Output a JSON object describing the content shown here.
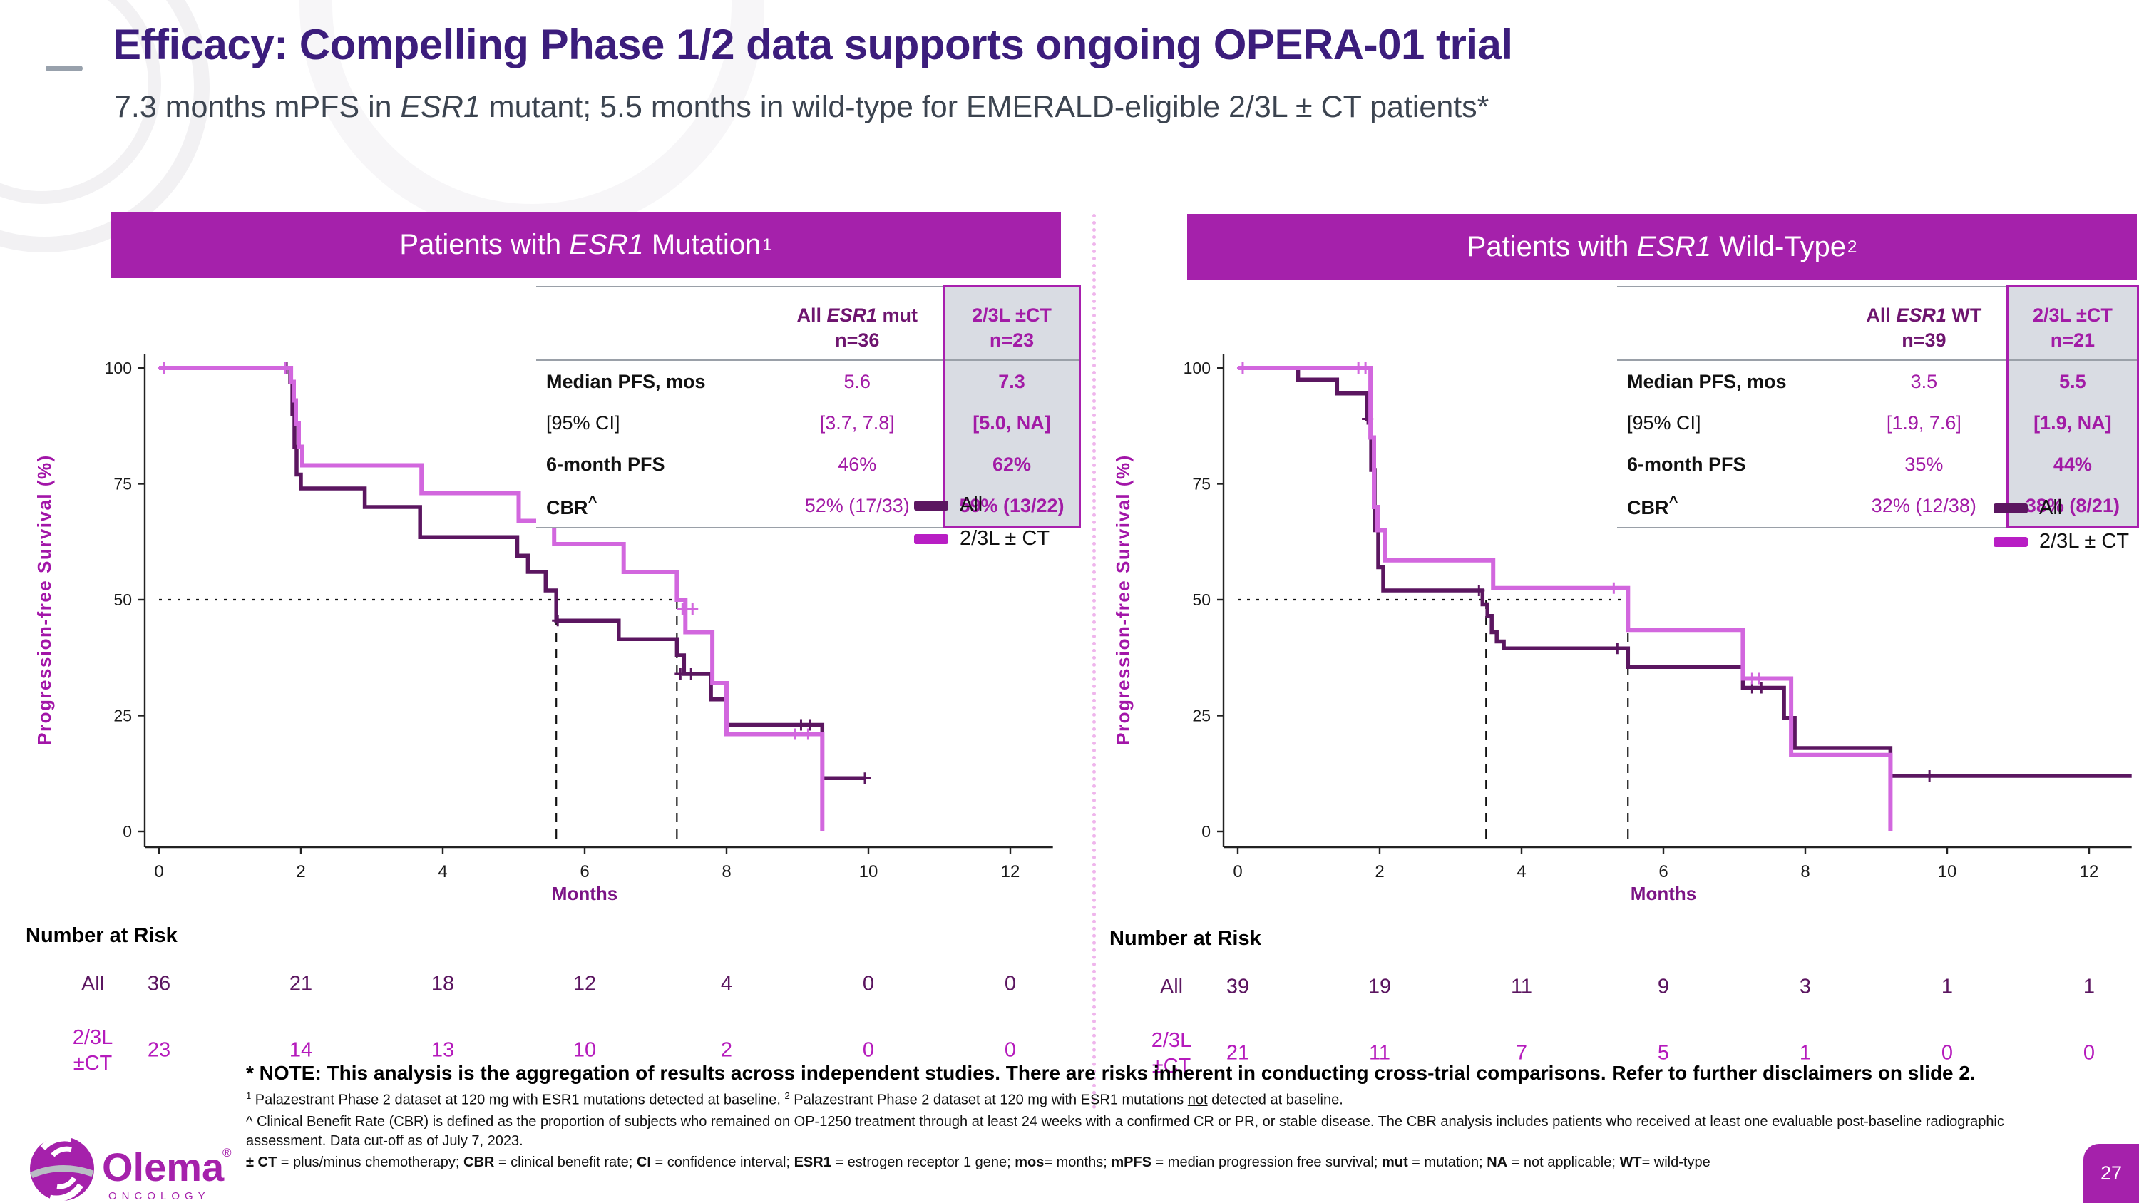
{
  "slide": {
    "title": "Efficacy: Compelling Phase 1/2 data supports ongoing OPERA-01 trial",
    "subtitle": {
      "pre": "7.3 months mPFS in ",
      "italic": "ESR1",
      "post": " mutant; 5.5 months in wild-type for EMERALD-eligible 2/3L ± CT patients*"
    },
    "page_number": "27",
    "brand": {
      "name": "Olema",
      "registered": "®",
      "subtext": "ONCOLOGY"
    }
  },
  "colors": {
    "accent_dark": "#5b1660",
    "accent_magenta": "#b51abc",
    "curve_light": "#d267de",
    "header_bg": "#a521ab",
    "title": "#3c1d7c",
    "highlight_bg": "#d9dce3",
    "highlight_border": "#a81fae"
  },
  "panels": [
    {
      "header": {
        "pre": "Patients with ",
        "italic": "ESR1",
        "post": " Mutation",
        "sup": "1"
      },
      "stats": {
        "col1_header": {
          "pre": "All ",
          "italic": "ESR1",
          "post": " mut"
        },
        "col1_n": "n=36",
        "col2_header": "2/3L ±CT",
        "col2_n": "n=23",
        "rows": [
          {
            "label": "Median PFS, mos",
            "v1": "5.6",
            "v2": "7.3"
          },
          {
            "label": "[95% CI]",
            "v1": "[3.7, 7.8]",
            "v2": "[5.0, NA]"
          },
          {
            "label": "6-month PFS",
            "v1": "46%",
            "v2": "62%"
          },
          {
            "label": "CBR",
            "label_sup": "^",
            "v1": "52% (17/33)",
            "v2": "59% (13/22)"
          }
        ]
      },
      "legend": [
        {
          "label": "All"
        },
        {
          "label": "2/3L ± CT"
        }
      ],
      "risk": {
        "title": "Number at Risk",
        "rows": [
          {
            "label": "All",
            "values": [
              "36",
              "21",
              "18",
              "12",
              "4",
              "0",
              "0"
            ]
          },
          {
            "label_line1": "2/3L",
            "label_line2": "±CT",
            "values": [
              "23",
              "14",
              "13",
              "10",
              "2",
              "0",
              "0"
            ]
          }
        ]
      }
    },
    {
      "header": {
        "pre": "Patients with ",
        "italic": "ESR1",
        "post": " Wild-Type",
        "sup": "2"
      },
      "stats": {
        "col1_header": {
          "pre": "All ",
          "italic": "ESR1",
          "post": " WT"
        },
        "col1_n": "n=39",
        "col2_header": "2/3L ±CT",
        "col2_n": "n=21",
        "rows": [
          {
            "label": "Median PFS, mos",
            "v1": "3.5",
            "v2": "5.5"
          },
          {
            "label": "[95% CI]",
            "v1": "[1.9, 7.6]",
            "v2": "[1.9, NA]"
          },
          {
            "label": "6-month PFS",
            "v1": "35%",
            "v2": "44%"
          },
          {
            "label": "CBR",
            "label_sup": "^",
            "v1": "32% (12/38)",
            "v2": "38% (8/21)"
          }
        ]
      },
      "legend": [
        {
          "label": "All"
        },
        {
          "label": "2/3L ± CT"
        }
      ],
      "risk": {
        "title": "Number at Risk",
        "rows": [
          {
            "label": "All",
            "values": [
              "39",
              "19",
              "11",
              "9",
              "3",
              "1",
              "1"
            ]
          },
          {
            "label_line1": "2/3L",
            "label_line2": "±CT",
            "values": [
              "21",
              "11",
              "7",
              "5",
              "1",
              "0",
              "0"
            ]
          }
        ]
      }
    }
  ],
  "footnotes": {
    "note": "* NOTE: This analysis is the aggregation of results across independent studies.  There are risks inherent in conducting cross-trial comparisons. Refer to further disclaimers on slide 2.",
    "line1_segments": [
      {
        "t": "1",
        "sup": true
      },
      {
        "t": " Palazestrant Phase 2 dataset at 120 mg with ESR1 mutations detected at baseline. "
      },
      {
        "t": "2",
        "sup": true
      },
      {
        "t": " Palazestrant Phase 2 dataset at 120 mg with ESR1 mutations "
      },
      {
        "t": "not",
        "u": true
      },
      {
        "t": " detected at baseline."
      }
    ],
    "line2_segments": [
      {
        "t": "^ Clinical Benefit Rate (CBR) is defined as the proportion of subjects who remained on OP-1250 treatment through at least 24 weeks with a confirmed CR or PR, or stable disease. The CBR analysis includes patients who received at least one evaluable post-baseline radiographic assessment. Data cut-off as of July 7, 2023."
      }
    ],
    "abbr_segments": [
      {
        "t": "± CT",
        "b": true
      },
      {
        "t": " = plus/minus chemotherapy; "
      },
      {
        "t": "CBR",
        "b": true
      },
      {
        "t": " = clinical benefit rate; "
      },
      {
        "t": "CI",
        "b": true
      },
      {
        "t": " = confidence interval; "
      },
      {
        "t": "ESR1",
        "b": true
      },
      {
        "t": " = estrogen receptor 1 gene; "
      },
      {
        "t": "mos",
        "b": true
      },
      {
        "t": "= months; "
      },
      {
        "t": "mPFS",
        "b": true
      },
      {
        "t": " = median progression free survival; "
      },
      {
        "t": "mut",
        "b": true
      },
      {
        "t": " = mutation; "
      },
      {
        "t": "NA",
        "b": true
      },
      {
        "t": " = not applicable; "
      },
      {
        "t": "WT",
        "b": true
      },
      {
        "t": "= wild-type"
      }
    ]
  },
  "chart_data": [
    {
      "type": "line",
      "title": "Patients with ESR1 Mutation",
      "xlabel": "Months",
      "ylabel": "Progression-free Survival (%)",
      "xlim": [
        0,
        12.6
      ],
      "ylim": [
        0,
        100
      ],
      "xticks": [
        0,
        2,
        4,
        6,
        8,
        10,
        12
      ],
      "yticks": [
        0,
        25,
        50,
        75,
        100
      ],
      "median_pfs_months": {
        "all": 5.6,
        "subgroup_2_3L_CT": 7.3
      },
      "reference_lines": {
        "h50_x_end": 7.3,
        "vertical_x": [
          5.6,
          7.3
        ]
      },
      "series": [
        {
          "name": "All",
          "color": "#5b1660",
          "width": 5.5,
          "steps": [
            [
              0,
              100
            ],
            [
              1.85,
              100
            ],
            [
              1.85,
              97
            ],
            [
              1.88,
              97
            ],
            [
              1.88,
              90
            ],
            [
              1.91,
              90
            ],
            [
              1.91,
              83
            ],
            [
              1.94,
              83
            ],
            [
              1.94,
              77
            ],
            [
              2.0,
              77
            ],
            [
              2.0,
              74
            ],
            [
              2.9,
              74
            ],
            [
              2.9,
              70
            ],
            [
              3.68,
              70
            ],
            [
              3.68,
              63.5
            ],
            [
              5.05,
              63.5
            ],
            [
              5.05,
              59.5
            ],
            [
              5.2,
              59.5
            ],
            [
              5.2,
              56
            ],
            [
              5.45,
              56
            ],
            [
              5.45,
              52
            ],
            [
              5.6,
              52
            ],
            [
              5.6,
              45.5
            ],
            [
              6.48,
              45.5
            ],
            [
              6.48,
              41.5
            ],
            [
              7.3,
              41.5
            ],
            [
              7.3,
              38
            ],
            [
              7.4,
              38
            ],
            [
              7.4,
              34
            ],
            [
              7.78,
              34
            ],
            [
              7.78,
              28.5
            ],
            [
              8.0,
              28.5
            ],
            [
              8.0,
              23
            ],
            [
              9.35,
              23
            ],
            [
              9.35,
              11.5
            ],
            [
              9.97,
              11.5
            ]
          ],
          "censors": [
            [
              1.8,
              100
            ],
            [
              5.62,
              45.5
            ],
            [
              7.35,
              34
            ],
            [
              7.5,
              34
            ],
            [
              9.05,
              23
            ],
            [
              9.18,
              23
            ],
            [
              9.95,
              11.5
            ]
          ]
        },
        {
          "name": "2/3L ± CT",
          "color": "#d267de",
          "width": 6,
          "steps": [
            [
              0,
              100
            ],
            [
              1.86,
              100
            ],
            [
              1.86,
              97
            ],
            [
              1.9,
              97
            ],
            [
              1.9,
              93
            ],
            [
              1.93,
              93
            ],
            [
              1.93,
              88
            ],
            [
              1.97,
              88
            ],
            [
              1.97,
              83
            ],
            [
              2.02,
              83
            ],
            [
              2.02,
              79
            ],
            [
              3.7,
              79
            ],
            [
              3.7,
              73
            ],
            [
              5.07,
              73
            ],
            [
              5.07,
              67
            ],
            [
              5.57,
              67
            ],
            [
              5.57,
              62
            ],
            [
              6.55,
              62
            ],
            [
              6.55,
              56
            ],
            [
              7.3,
              56
            ],
            [
              7.3,
              50
            ],
            [
              7.42,
              50
            ],
            [
              7.42,
              43
            ],
            [
              7.8,
              43
            ],
            [
              7.8,
              32
            ],
            [
              8.0,
              32
            ],
            [
              8.0,
              21
            ],
            [
              9.35,
              21
            ],
            [
              9.35,
              0
            ]
          ],
          "censors": [
            [
              0.07,
              100
            ],
            [
              1.78,
              100
            ],
            [
              7.38,
              48
            ],
            [
              7.52,
              48
            ],
            [
              8.97,
              21
            ],
            [
              9.15,
              21
            ]
          ]
        }
      ]
    },
    {
      "type": "line",
      "title": "Patients with ESR1 Wild-Type",
      "xlabel": "Months",
      "ylabel": "Progression-free Survival (%)",
      "xlim": [
        0,
        12.6
      ],
      "ylim": [
        0,
        100
      ],
      "xticks": [
        0,
        2,
        4,
        6,
        8,
        10,
        12
      ],
      "yticks": [
        0,
        25,
        50,
        75,
        100
      ],
      "median_pfs_months": {
        "all": 3.5,
        "subgroup_2_3L_CT": 5.5
      },
      "reference_lines": {
        "h50_x_end": 5.5,
        "vertical_x": [
          3.5,
          5.5
        ]
      },
      "series": [
        {
          "name": "All",
          "color": "#5b1660",
          "width": 5.5,
          "steps": [
            [
              0,
              100
            ],
            [
              0.85,
              100
            ],
            [
              0.85,
              97.5
            ],
            [
              1.4,
              97.5
            ],
            [
              1.4,
              94.5
            ],
            [
              1.82,
              94.5
            ],
            [
              1.82,
              89
            ],
            [
              1.88,
              89
            ],
            [
              1.88,
              78
            ],
            [
              1.93,
              78
            ],
            [
              1.93,
              65
            ],
            [
              1.98,
              65
            ],
            [
              1.98,
              57
            ],
            [
              2.05,
              57
            ],
            [
              2.05,
              52
            ],
            [
              3.45,
              52
            ],
            [
              3.45,
              49
            ],
            [
              3.52,
              49
            ],
            [
              3.52,
              46.5
            ],
            [
              3.58,
              46.5
            ],
            [
              3.58,
              43
            ],
            [
              3.65,
              43
            ],
            [
              3.65,
              41
            ],
            [
              3.75,
              41
            ],
            [
              3.75,
              39.5
            ],
            [
              5.5,
              39.5
            ],
            [
              5.5,
              35.5
            ],
            [
              7.12,
              35.5
            ],
            [
              7.12,
              31
            ],
            [
              7.7,
              31
            ],
            [
              7.7,
              24.5
            ],
            [
              7.85,
              24.5
            ],
            [
              7.85,
              18
            ],
            [
              9.2,
              18
            ],
            [
              9.2,
              12
            ],
            [
              12.6,
              12
            ]
          ],
          "censors": [
            [
              1.83,
              89
            ],
            [
              3.4,
              52
            ],
            [
              5.35,
              39.5
            ],
            [
              7.25,
              31
            ],
            [
              7.38,
              31
            ],
            [
              9.75,
              12
            ]
          ]
        },
        {
          "name": "2/3L ± CT",
          "color": "#d267de",
          "width": 6,
          "steps": [
            [
              0,
              100
            ],
            [
              1.87,
              100
            ],
            [
              1.87,
              85
            ],
            [
              1.92,
              85
            ],
            [
              1.92,
              70
            ],
            [
              1.97,
              70
            ],
            [
              1.97,
              65
            ],
            [
              2.07,
              65
            ],
            [
              2.07,
              58.5
            ],
            [
              3.6,
              58.5
            ],
            [
              3.6,
              52.5
            ],
            [
              5.5,
              52.5
            ],
            [
              5.5,
              43.5
            ],
            [
              7.12,
              43.5
            ],
            [
              7.12,
              33
            ],
            [
              7.8,
              33
            ],
            [
              7.8,
              16.5
            ],
            [
              9.2,
              16.5
            ],
            [
              9.2,
              0
            ]
          ],
          "censors": [
            [
              0.07,
              100
            ],
            [
              1.7,
              100
            ],
            [
              1.8,
              100
            ],
            [
              5.3,
              52.5
            ],
            [
              7.25,
              33
            ],
            [
              7.35,
              33
            ]
          ]
        }
      ]
    }
  ]
}
